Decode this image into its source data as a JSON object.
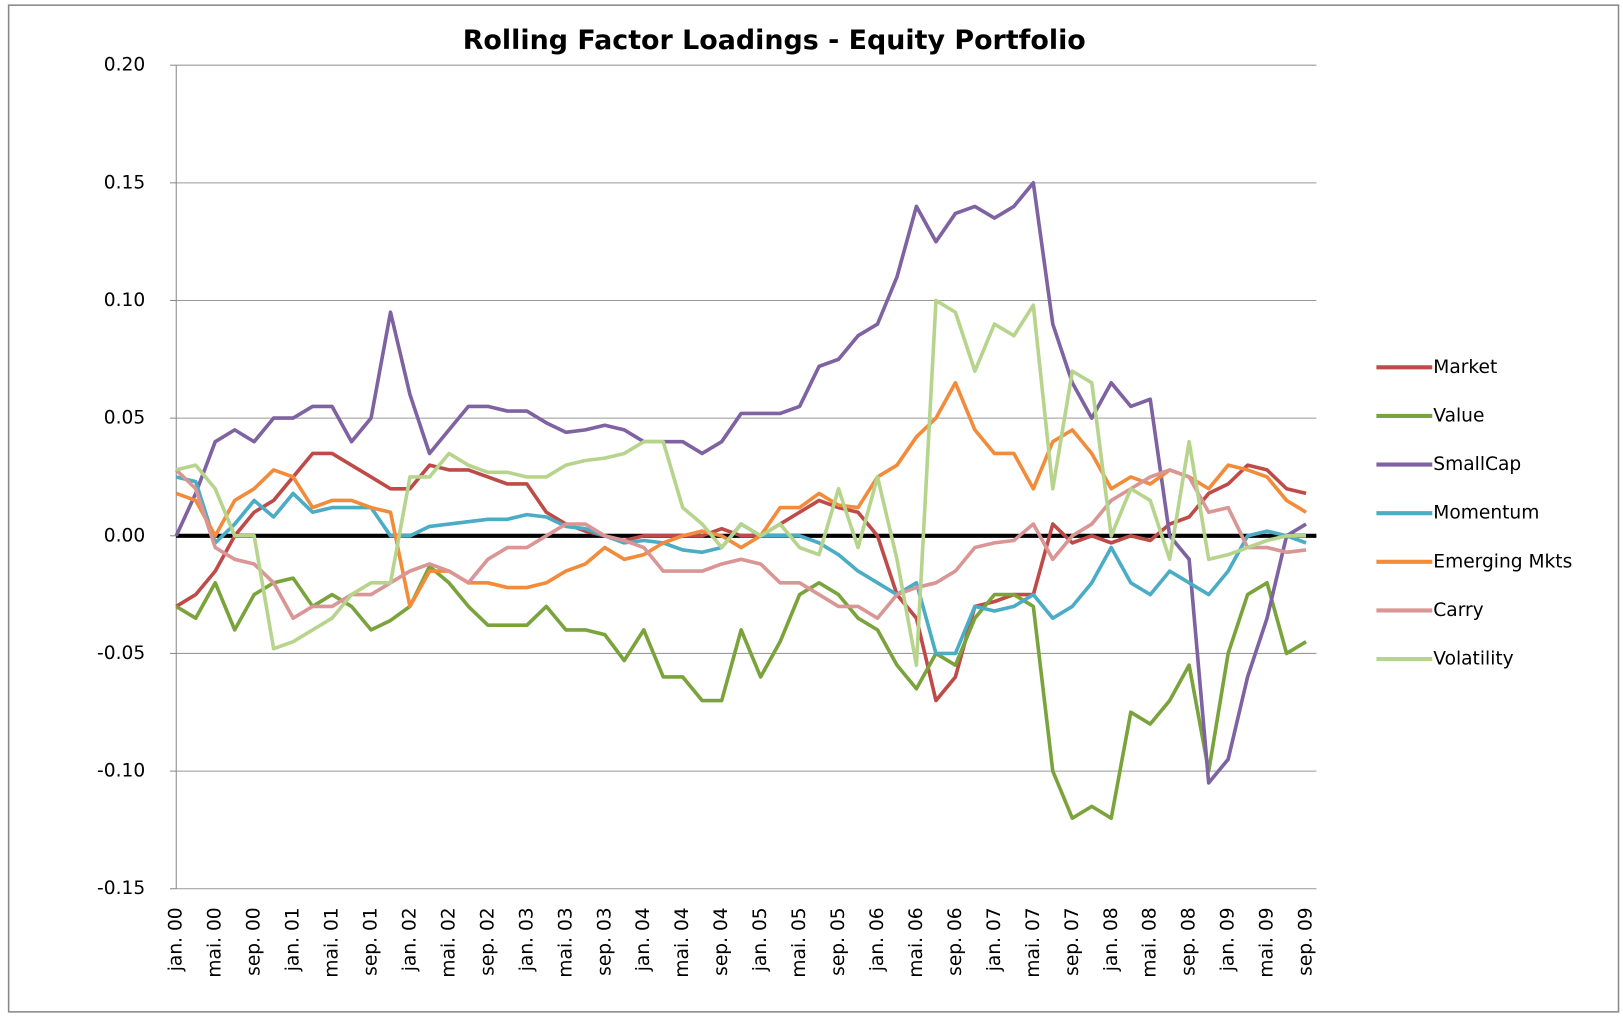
{
  "chart_data": {
    "type": "line",
    "title": "Rolling Factor Loadings - Equity Portfolio",
    "categories": [
      "jan. 00",
      null,
      "mai. 00",
      null,
      "sep. 00",
      null,
      "jan. 01",
      null,
      "mai. 01",
      null,
      "sep. 01",
      null,
      "jan. 02",
      null,
      "mai. 02",
      null,
      "sep. 02",
      null,
      "jan. 03",
      null,
      "mai. 03",
      null,
      "sep. 03",
      null,
      "jan. 04",
      null,
      "mai. 04",
      null,
      "sep. 04",
      null,
      "jan. 05",
      null,
      "mai. 05",
      null,
      "sep. 05",
      null,
      "jan. 06",
      null,
      "mai. 06",
      null,
      "sep. 06",
      null,
      "jan. 07",
      null,
      "mai. 07",
      null,
      "sep. 07",
      null,
      "jan. 08",
      null,
      "mai. 08",
      null,
      "sep. 08",
      null,
      "jan. 09",
      null,
      "mai. 09",
      null,
      "sep. 09"
    ],
    "series": [
      {
        "name": "Market",
        "color": "#be4b48",
        "values": [
          -0.03,
          -0.025,
          -0.015,
          0.0,
          0.01,
          0.015,
          0.025,
          0.035,
          0.035,
          0.03,
          0.025,
          0.02,
          0.02,
          0.03,
          0.028,
          0.028,
          0.025,
          0.022,
          0.022,
          0.01,
          0.005,
          0.002,
          0.0,
          -0.002,
          0.0,
          0.0,
          0.0,
          0.0,
          0.003,
          0.0,
          0.0,
          0.005,
          0.01,
          0.015,
          0.012,
          0.01,
          0.0,
          -0.025,
          -0.035,
          -0.07,
          -0.06,
          -0.03,
          -0.028,
          -0.025,
          -0.025,
          0.005,
          -0.003,
          0.0,
          -0.003,
          0.0,
          -0.002,
          0.005,
          0.008,
          0.018,
          0.022,
          0.03,
          0.028,
          0.02,
          0.018
        ]
      },
      {
        "name": "Value",
        "color": "#7aa33b",
        "values": [
          -0.03,
          -0.035,
          -0.02,
          -0.04,
          -0.025,
          -0.02,
          -0.018,
          -0.03,
          -0.025,
          -0.03,
          -0.04,
          -0.036,
          -0.03,
          -0.013,
          -0.02,
          -0.03,
          -0.038,
          -0.038,
          -0.038,
          -0.03,
          -0.04,
          -0.04,
          -0.042,
          -0.053,
          -0.04,
          -0.06,
          -0.06,
          -0.07,
          -0.07,
          -0.04,
          -0.06,
          -0.045,
          -0.025,
          -0.02,
          -0.025,
          -0.035,
          -0.04,
          -0.055,
          -0.065,
          -0.05,
          -0.055,
          -0.035,
          -0.025,
          -0.025,
          -0.03,
          -0.1,
          -0.12,
          -0.115,
          -0.12,
          -0.075,
          -0.08,
          -0.07,
          -0.055,
          -0.1,
          -0.05,
          -0.025,
          -0.02,
          -0.05,
          -0.045
        ]
      },
      {
        "name": "SmallCap",
        "color": "#7e62a1",
        "values": [
          0.0,
          0.018,
          0.04,
          0.045,
          0.04,
          0.05,
          0.05,
          0.055,
          0.055,
          0.04,
          0.05,
          0.095,
          0.06,
          0.035,
          0.045,
          0.055,
          0.055,
          0.053,
          0.053,
          0.048,
          0.044,
          0.045,
          0.047,
          0.045,
          0.04,
          0.04,
          0.04,
          0.035,
          0.04,
          0.052,
          0.052,
          0.052,
          0.055,
          0.072,
          0.075,
          0.085,
          0.09,
          0.11,
          0.14,
          0.125,
          0.137,
          0.14,
          0.135,
          0.14,
          0.15,
          0.09,
          0.065,
          0.05,
          0.065,
          0.055,
          0.058,
          0.0,
          -0.01,
          -0.105,
          -0.095,
          -0.06,
          -0.035,
          0.0,
          0.005
        ]
      },
      {
        "name": "Momentum",
        "color": "#4aacc5",
        "values": [
          0.025,
          0.023,
          -0.003,
          0.005,
          0.015,
          0.008,
          0.018,
          0.01,
          0.012,
          0.012,
          0.012,
          0.0,
          0.0,
          0.004,
          0.005,
          0.006,
          0.007,
          0.007,
          0.009,
          0.008,
          0.004,
          0.003,
          0.0,
          -0.003,
          -0.002,
          -0.003,
          -0.006,
          -0.007,
          -0.005,
          0.005,
          0.0,
          0.0,
          0.0,
          -0.003,
          -0.008,
          -0.015,
          -0.02,
          -0.025,
          -0.02,
          -0.05,
          -0.05,
          -0.03,
          -0.032,
          -0.03,
          -0.025,
          -0.035,
          -0.03,
          -0.02,
          -0.005,
          -0.02,
          -0.025,
          -0.015,
          -0.02,
          -0.025,
          -0.015,
          0.0,
          0.002,
          0.0,
          -0.003
        ]
      },
      {
        "name": "Emerging Mkts",
        "color": "#f28b3a",
        "values": [
          0.018,
          0.015,
          0.0,
          0.015,
          0.02,
          0.028,
          0.025,
          0.012,
          0.015,
          0.015,
          0.012,
          0.01,
          -0.03,
          -0.015,
          -0.015,
          -0.02,
          -0.02,
          -0.022,
          -0.022,
          -0.02,
          -0.015,
          -0.012,
          -0.005,
          -0.01,
          -0.008,
          -0.003,
          0.0,
          0.002,
          0.0,
          -0.005,
          0.0,
          0.012,
          0.012,
          0.018,
          0.013,
          0.012,
          0.025,
          0.03,
          0.042,
          0.05,
          0.065,
          0.045,
          0.035,
          0.035,
          0.02,
          0.04,
          0.045,
          0.035,
          0.02,
          0.025,
          0.022,
          0.028,
          0.025,
          0.02,
          0.03,
          0.028,
          0.025,
          0.015,
          0.01
        ]
      },
      {
        "name": "Carry",
        "color": "#d99694",
        "values": [
          0.028,
          0.02,
          -0.005,
          -0.01,
          -0.012,
          -0.02,
          -0.035,
          -0.03,
          -0.03,
          -0.025,
          -0.025,
          -0.02,
          -0.015,
          -0.012,
          -0.015,
          -0.02,
          -0.01,
          -0.005,
          -0.005,
          0.0,
          0.005,
          0.005,
          0.0,
          -0.002,
          -0.005,
          -0.015,
          -0.015,
          -0.015,
          -0.012,
          -0.01,
          -0.012,
          -0.02,
          -0.02,
          -0.025,
          -0.03,
          -0.03,
          -0.035,
          -0.025,
          -0.022,
          -0.02,
          -0.015,
          -0.005,
          -0.003,
          -0.002,
          0.005,
          -0.01,
          0.0,
          0.005,
          0.015,
          0.02,
          0.025,
          0.028,
          0.025,
          0.01,
          0.012,
          -0.005,
          -0.005,
          -0.007,
          -0.006
        ]
      },
      {
        "name": "Volatility",
        "color": "#b7d48d",
        "values": [
          0.028,
          0.03,
          0.02,
          0.0,
          0.0,
          -0.048,
          -0.045,
          -0.04,
          -0.035,
          -0.025,
          -0.02,
          -0.02,
          0.025,
          0.025,
          0.035,
          0.03,
          0.027,
          0.027,
          0.025,
          0.025,
          0.03,
          0.032,
          0.033,
          0.035,
          0.04,
          0.04,
          0.012,
          0.005,
          -0.005,
          0.005,
          0.0,
          0.005,
          -0.005,
          -0.008,
          0.02,
          -0.005,
          0.025,
          -0.01,
          -0.055,
          0.1,
          0.095,
          0.07,
          0.09,
          0.085,
          0.098,
          0.02,
          0.07,
          0.065,
          0.0,
          0.02,
          0.015,
          -0.01,
          0.04,
          -0.01,
          -0.008,
          -0.005,
          -0.002,
          0.0,
          0.0
        ]
      }
    ],
    "ylim": [
      -0.15,
      0.2
    ],
    "yticks": [
      {
        "value": -0.15,
        "label": "-0.15"
      },
      {
        "value": -0.1,
        "label": "-0.10"
      },
      {
        "value": -0.05,
        "label": "-0.05"
      },
      {
        "value": 0,
        "label": "0.00"
      },
      {
        "value": 0.05,
        "label": "0.05"
      },
      {
        "value": 0.1,
        "label": "0.10"
      },
      {
        "value": 0.15,
        "label": "0.15"
      },
      {
        "value": 0.2,
        "label": "0.20"
      }
    ],
    "grid": true,
    "legend": "right"
  }
}
